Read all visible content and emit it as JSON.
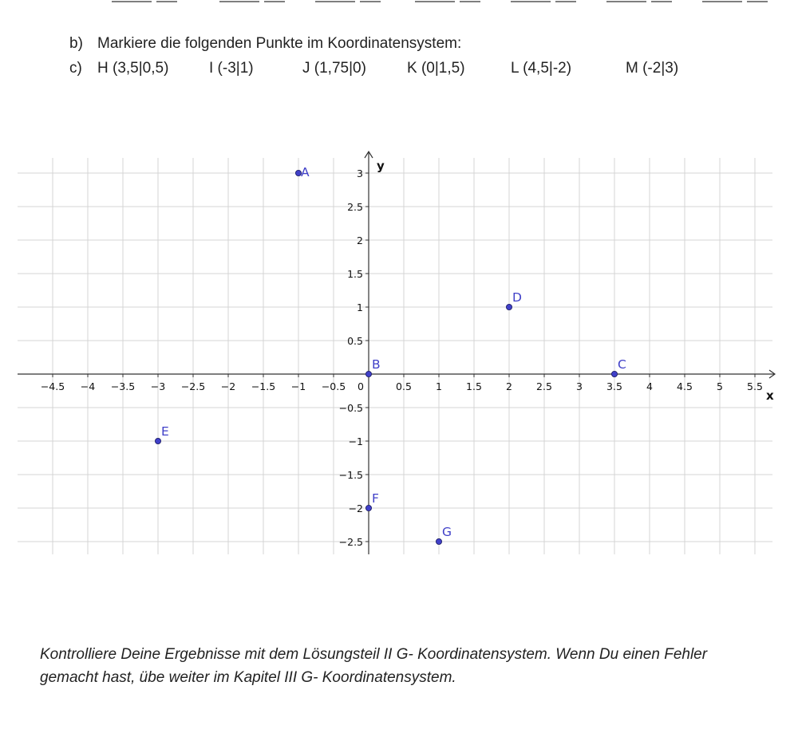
{
  "task_b": {
    "letter": "b)",
    "text": "Markiere die folgenden Punkte im Koordinatensystem:"
  },
  "task_c": {
    "letter": "c)",
    "points": [
      {
        "label": "H (3,5|0,5)"
      },
      {
        "label": "I (-3|1)"
      },
      {
        "label": "J (1,75|0)"
      },
      {
        "label": "K (0|1,5)"
      },
      {
        "label": "L (4,5|-2)"
      },
      {
        "label": "M (-2|3)"
      }
    ]
  },
  "chart_data": {
    "type": "scatter",
    "xlabel": "x",
    "ylabel": "y",
    "xlim": [
      -4.5,
      5.5
    ],
    "ylim": [
      -2.5,
      3
    ],
    "grid": true,
    "x_ticks": [
      "−4.5",
      "−4",
      "−3.5",
      "−3",
      "−2.5",
      "−2",
      "−1.5",
      "−1",
      "−0.5",
      "0",
      "0.5",
      "1",
      "1.5",
      "2",
      "2.5",
      "3",
      "3.5",
      "4",
      "4.5",
      "5",
      "5.5"
    ],
    "y_ticks": [
      "−2.5",
      "−2",
      "−1.5",
      "−1",
      "−0.5",
      "0.5",
      "1",
      "1.5",
      "2",
      "2.5",
      "3"
    ],
    "points": [
      {
        "name": "A",
        "x": -1,
        "y": 3
      },
      {
        "name": "B",
        "x": 0,
        "y": 0
      },
      {
        "name": "C",
        "x": 3.5,
        "y": 0
      },
      {
        "name": "D",
        "x": 2,
        "y": 1
      },
      {
        "name": "E",
        "x": -3,
        "y": -1
      },
      {
        "name": "F",
        "x": 0,
        "y": -2
      },
      {
        "name": "G",
        "x": 1,
        "y": -2.5
      }
    ],
    "colors": {
      "point": "#4040c8",
      "grid": "#d4d4d4",
      "axis": "#333333"
    }
  },
  "footer": {
    "line1": "Kontrolliere Deine Ergebnisse mit dem Lösungsteil II G- Koordinatensystem. Wenn Du einen Fehler",
    "line2": "gemacht hast, übe weiter im Kapitel III G- Koordinatensystem."
  }
}
